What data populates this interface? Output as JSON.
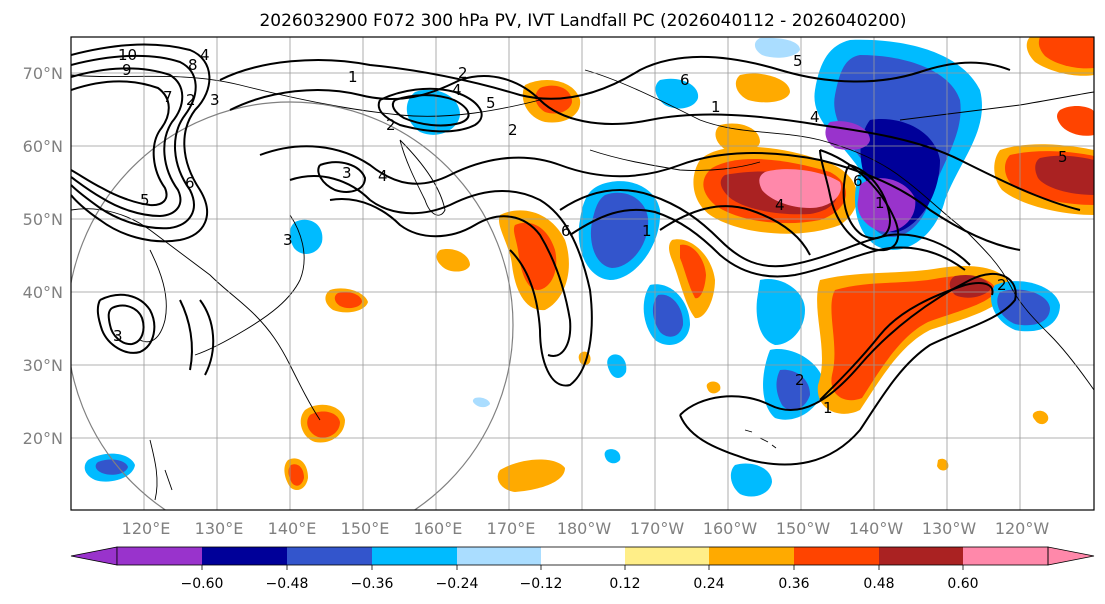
{
  "title": "2026032900 F072 300 hPa PV, IVT Landfall PC (2026040112 - 2026040200)",
  "lon_labels": [
    "120°E",
    "130°E",
    "140°E",
    "150°E",
    "160°E",
    "170°E",
    "180°W",
    "170°W",
    "160°W",
    "150°W",
    "140°W",
    "130°W",
    "120°W"
  ],
  "lat_labels": [
    "70°N",
    "60°N",
    "50°N",
    "40°N",
    "30°N",
    "20°N"
  ],
  "colorbar": {
    "tick_labels": [
      "−0.60",
      "−0.48",
      "−0.36",
      "−0.24",
      "−0.12",
      "0.12",
      "0.24",
      "0.36",
      "0.48",
      "0.60"
    ],
    "colors": [
      "#9933cc",
      "#000099",
      "#3355cc",
      "#00bbff",
      "#aaddff",
      "#ffffff",
      "#ffee88",
      "#ffaa00",
      "#ff4400",
      "#aa2222",
      "#ff88aa"
    ]
  },
  "contour_labels": [
    {
      "text": "10"
    },
    {
      "text": "9"
    },
    {
      "text": "8"
    },
    {
      "text": "7"
    },
    {
      "text": "6"
    },
    {
      "text": "5"
    },
    {
      "text": "4"
    },
    {
      "text": "3"
    },
    {
      "text": "2"
    },
    {
      "text": "1"
    },
    {
      "text": "2"
    },
    {
      "text": "4"
    },
    {
      "text": "5"
    },
    {
      "text": "2"
    },
    {
      "text": "2"
    },
    {
      "text": "3"
    },
    {
      "text": "4"
    },
    {
      "text": "3"
    },
    {
      "text": "3"
    },
    {
      "text": "6"
    },
    {
      "text": "5"
    },
    {
      "text": "4"
    },
    {
      "text": "6"
    },
    {
      "text": "4"
    },
    {
      "text": "6"
    },
    {
      "text": "1"
    },
    {
      "text": "5"
    },
    {
      "text": "1"
    },
    {
      "text": "2"
    },
    {
      "text": "1"
    },
    {
      "text": "2"
    },
    {
      "text": "1"
    }
  ]
}
